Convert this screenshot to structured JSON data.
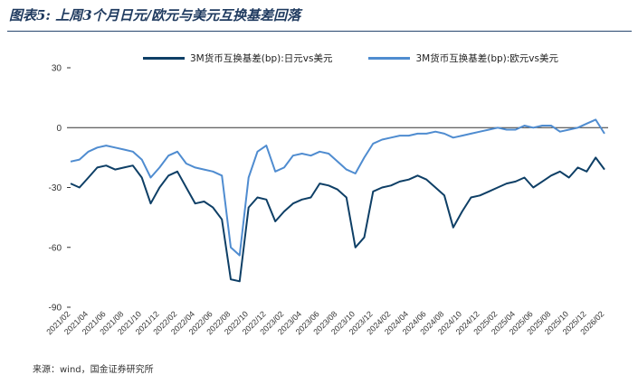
{
  "header": {
    "title": "图表5: 上周3个月日元/欧元与美元互换基差回落"
  },
  "source_text": "来源：wind，国金证券研究所",
  "colors": {
    "jpy": "#0e3f66",
    "eur": "#4f8cd0",
    "axis": "#333333"
  },
  "chart_data": {
    "type": "line",
    "title": "图表5: 上周3个月日元/欧元与美元互换基差回落",
    "xlabel": "",
    "ylabel": "",
    "ylim": [
      -90,
      30
    ],
    "yticks": [
      "30",
      "0",
      "-30",
      "-60",
      "-90"
    ],
    "xticks": [
      "2021/02",
      "2021/04",
      "2021/06",
      "2021/08",
      "2021/10",
      "2021/12",
      "2022/02",
      "2022/04",
      "2022/06",
      "2022/08",
      "2022/10",
      "2022/12",
      "2023/02",
      "2023/04",
      "2023/06",
      "2023/08",
      "2023/10",
      "2023/12",
      "2024/02",
      "2024/04",
      "2024/06",
      "2024/08",
      "2024/10",
      "2024/12",
      "2025/02",
      "2025/04",
      "2025/06",
      "2025/08",
      "2025/10",
      "2025/12",
      "2026/02"
    ],
    "legend_position": "top",
    "x": [
      "2021/02",
      "2021/03",
      "2021/04",
      "2021/05",
      "2021/06",
      "2021/07",
      "2021/08",
      "2021/09",
      "2021/10",
      "2021/11",
      "2021/12",
      "2022/01",
      "2022/02",
      "2022/03",
      "2022/04",
      "2022/05",
      "2022/06",
      "2022/07",
      "2022/08",
      "2022/09",
      "2022/10",
      "2022/11",
      "2022/12",
      "2023/01",
      "2023/02",
      "2023/03",
      "2023/04",
      "2023/05",
      "2023/06",
      "2023/07",
      "2023/08",
      "2023/09",
      "2023/10",
      "2023/11",
      "2023/12",
      "2024/01",
      "2024/02",
      "2024/03",
      "2024/04",
      "2024/05",
      "2024/06",
      "2024/07",
      "2024/08",
      "2024/09",
      "2024/10",
      "2024/11",
      "2024/12",
      "2025/01",
      "2025/02",
      "2025/03",
      "2025/04",
      "2025/05",
      "2025/06",
      "2025/07",
      "2025/08",
      "2025/09",
      "2025/10",
      "2025/11",
      "2025/12",
      "2026/01",
      "2026/02"
    ],
    "series": [
      {
        "name": "3M货币互换基差(bp):日元vs美元",
        "color": "#0e3f66",
        "values": [
          -28,
          -30,
          -25,
          -20,
          -19,
          -21,
          -20,
          -19,
          -25,
          -38,
          -30,
          -24,
          -22,
          -30,
          -38,
          -37,
          -40,
          -46,
          -76,
          -77,
          -40,
          -35,
          -36,
          -47,
          -42,
          -38,
          -36,
          -35,
          -28,
          -29,
          -31,
          -35,
          -60,
          -55,
          -32,
          -30,
          -29,
          -27,
          -26,
          -24,
          -26,
          -30,
          -34,
          -50,
          -42,
          -35,
          -34,
          -32,
          -30,
          -28,
          -27,
          -25,
          -30,
          -27,
          -24,
          -22,
          -25,
          -20,
          -22,
          -15,
          -21
        ]
      },
      {
        "name": "3M货币互换基差(bp):欧元vs美元",
        "color": "#4f8cd0",
        "values": [
          -17,
          -16,
          -12,
          -10,
          -9,
          -10,
          -11,
          -12,
          -16,
          -25,
          -20,
          -14,
          -12,
          -18,
          -20,
          -21,
          -22,
          -24,
          -60,
          -64,
          -25,
          -12,
          -9,
          -22,
          -20,
          -14,
          -13,
          -14,
          -12,
          -13,
          -17,
          -21,
          -23,
          -15,
          -8,
          -6,
          -5,
          -4,
          -4,
          -3,
          -3,
          -2,
          -3,
          -5,
          -4,
          -3,
          -2,
          -1,
          0,
          -1,
          -1,
          1,
          0,
          1,
          1,
          -2,
          -1,
          0,
          2,
          4,
          -3
        ]
      }
    ]
  }
}
